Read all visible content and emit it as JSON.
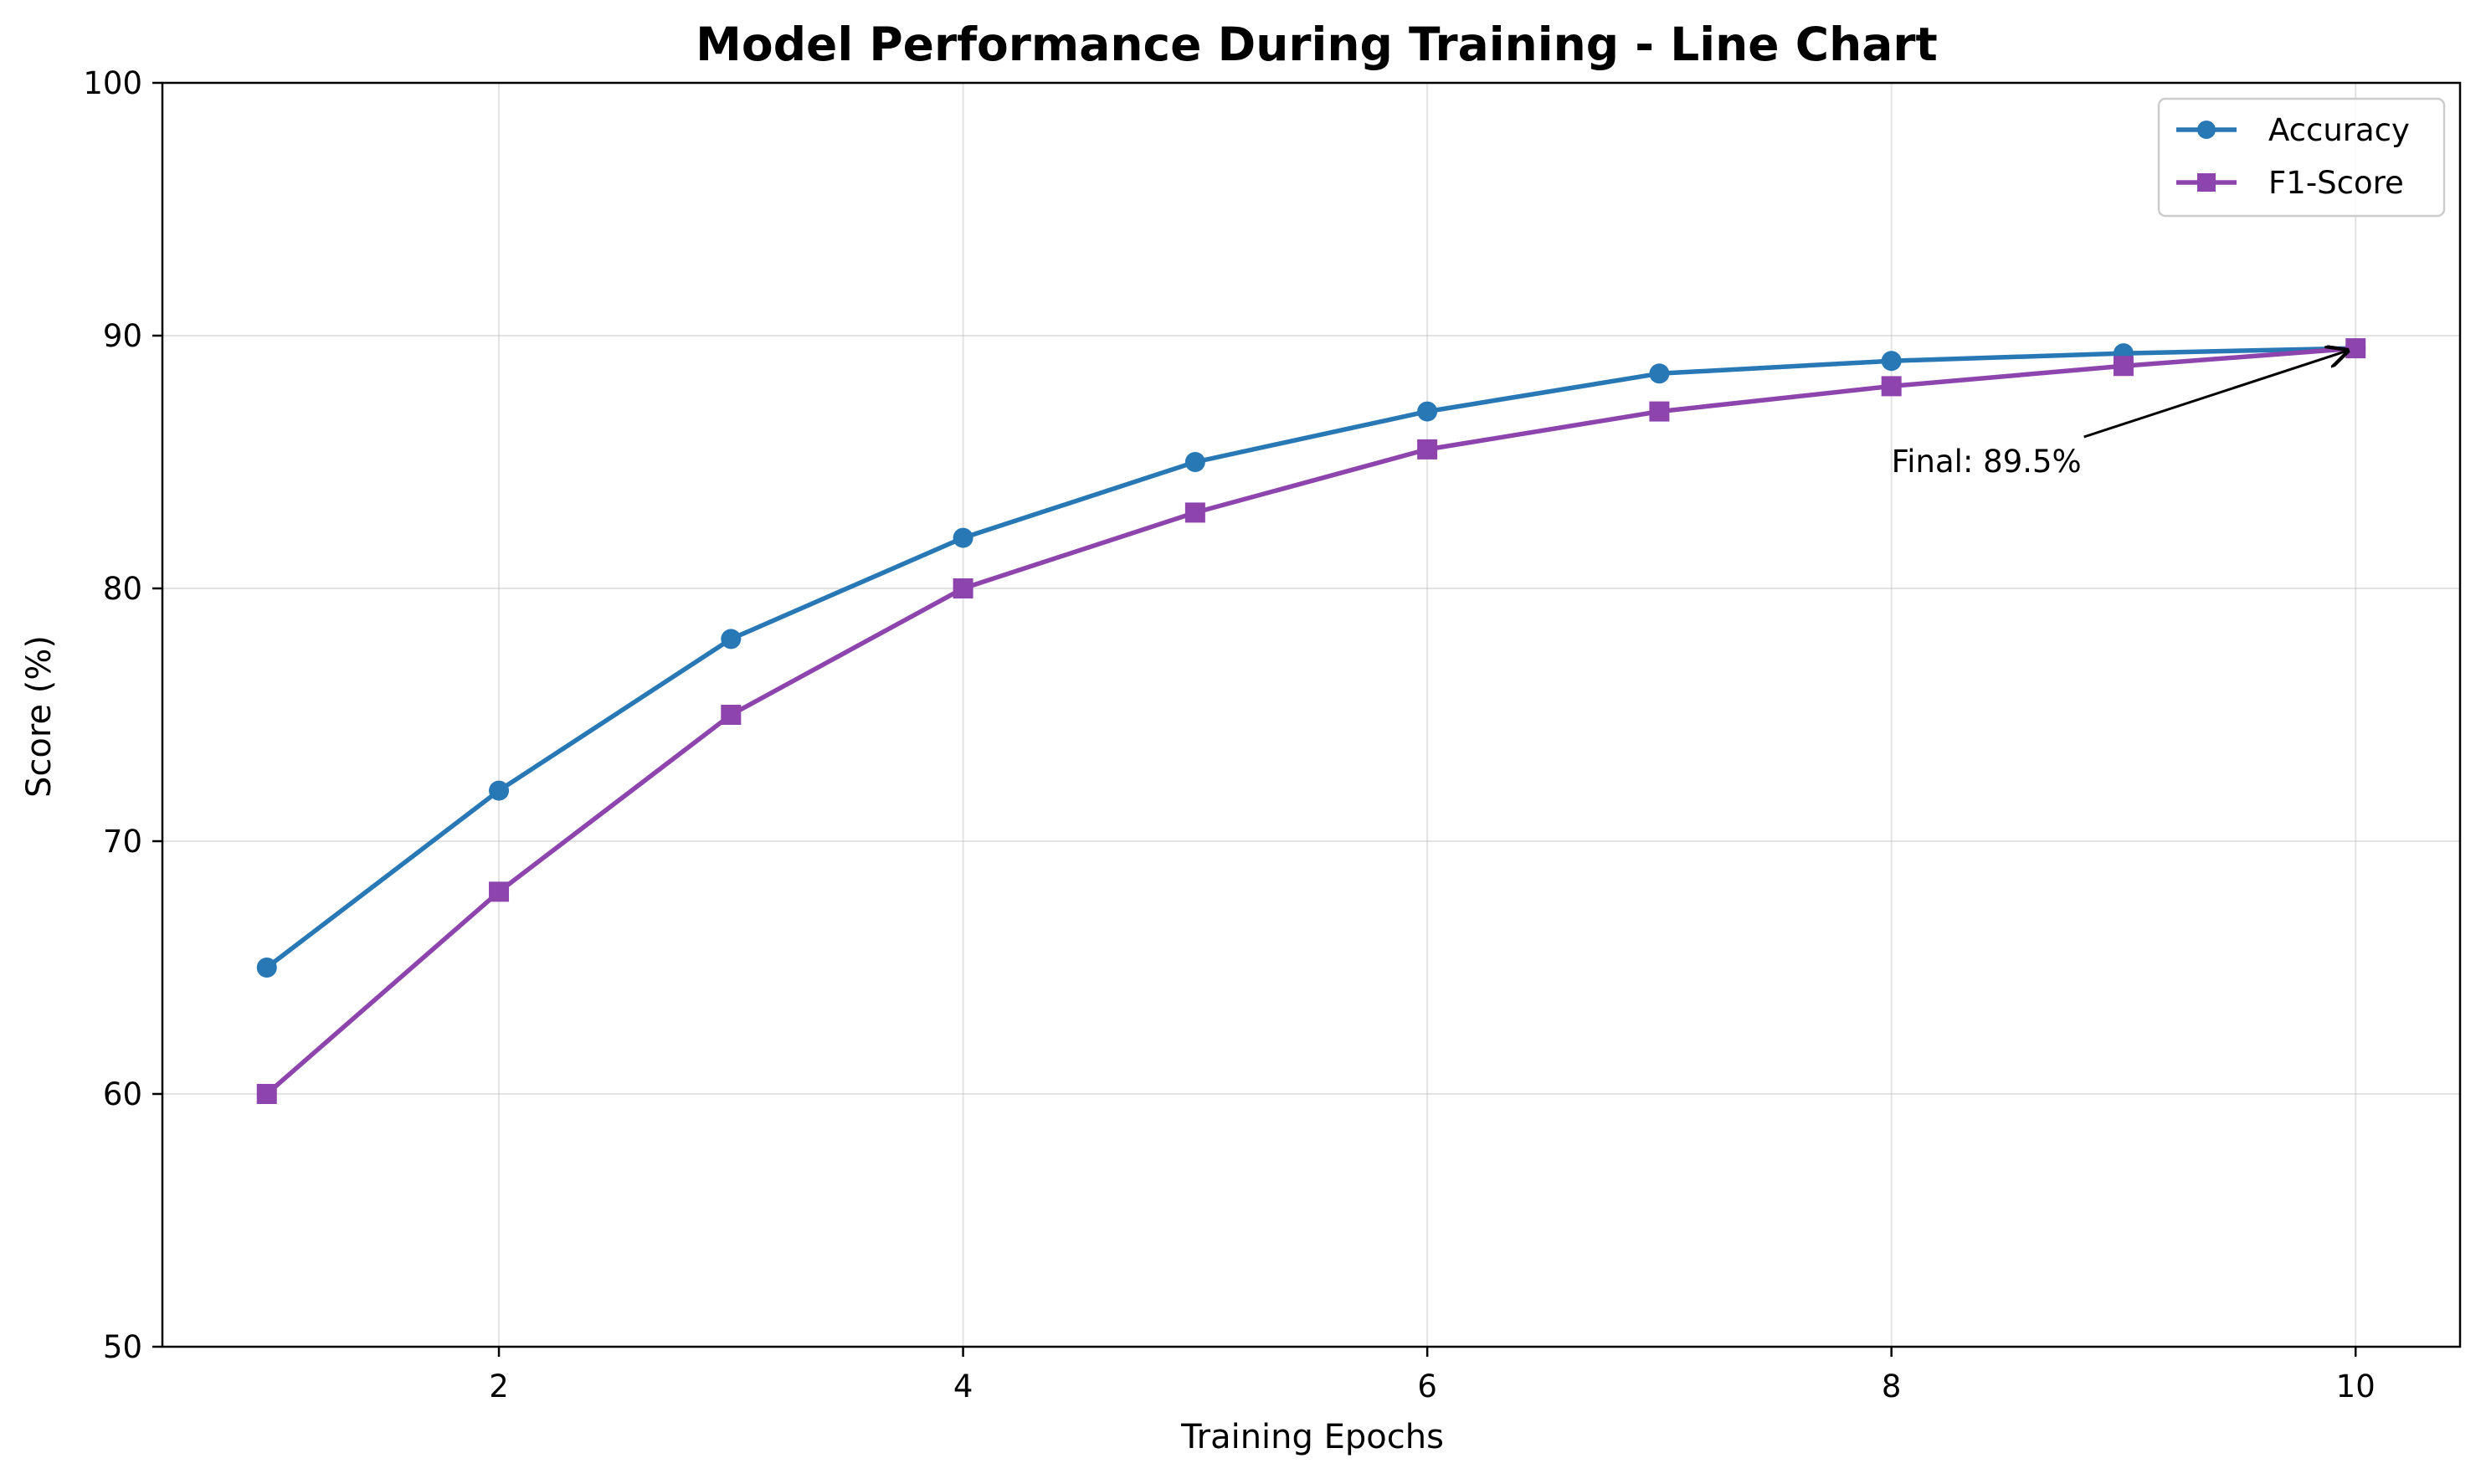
{
  "chart_data": {
    "type": "line",
    "title": "Model Performance During Training - Line Chart",
    "xlabel": "Training Epochs",
    "ylabel": "Score (%)",
    "xlim": [
      0.55,
      10.45
    ],
    "ylim": [
      50,
      100
    ],
    "x_ticks": [
      2,
      4,
      6,
      8,
      10
    ],
    "y_ticks": [
      50,
      60,
      70,
      80,
      90,
      100
    ],
    "x_tick_labels": [
      "2",
      "4",
      "6",
      "8",
      "10"
    ],
    "y_tick_labels": [
      "50",
      "60",
      "70",
      "80",
      "90",
      "100"
    ],
    "grid": true,
    "legend_position": "top-right",
    "x": [
      1,
      2,
      3,
      4,
      5,
      6,
      7,
      8,
      9,
      10
    ],
    "series": [
      {
        "name": "Accuracy",
        "marker": "circle",
        "color": "#2878b5",
        "values": [
          65,
          72,
          78,
          82,
          85,
          87,
          88.5,
          89,
          89.3,
          89.5
        ]
      },
      {
        "name": "F1-Score",
        "marker": "square",
        "color": "#8e44ad",
        "values": [
          60,
          68,
          75,
          80,
          83,
          85.5,
          87,
          88,
          88.8,
          89.5
        ]
      }
    ],
    "annotation": {
      "text": "Final: 89.5%",
      "point": [
        10,
        89.5
      ],
      "text_anchor": [
        8,
        85
      ]
    }
  }
}
